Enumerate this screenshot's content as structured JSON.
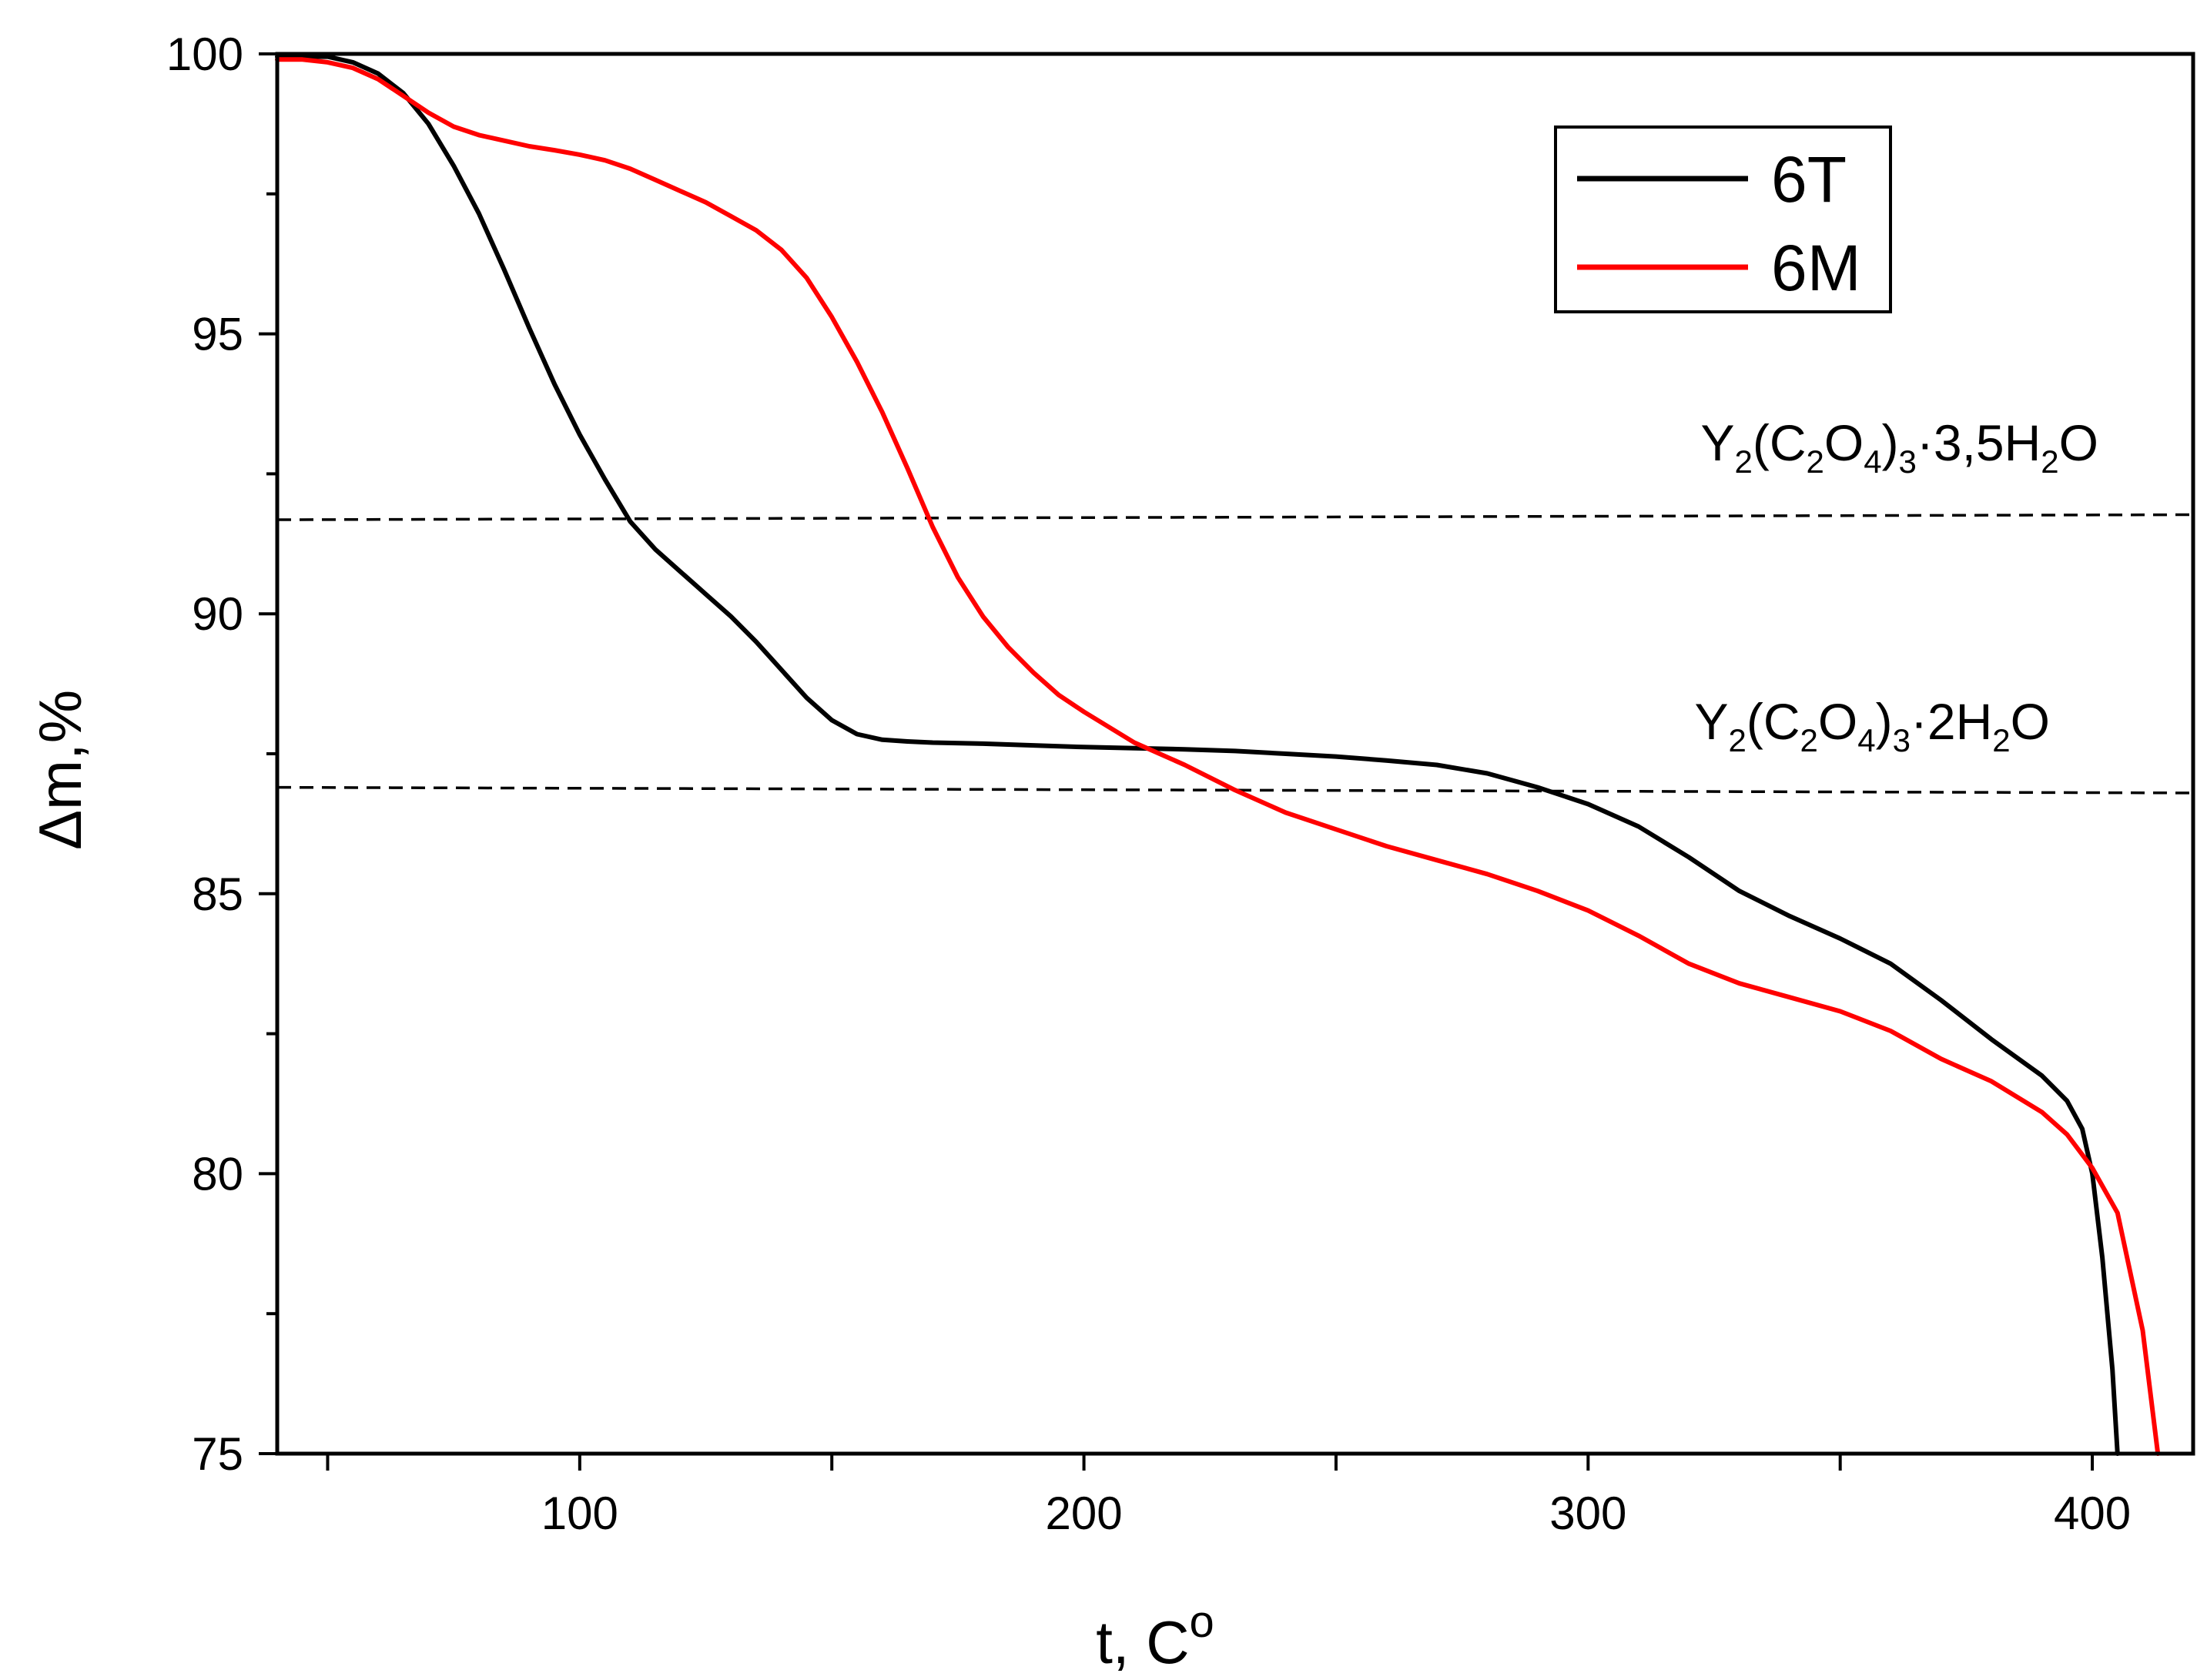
{
  "chart_data": {
    "type": "line",
    "title": "",
    "xlabel": "t, C",
    "xlabel_sup": "o",
    "ylabel": "Δm,%",
    "xlim": [
      40,
      420
    ],
    "ylim": [
      75,
      100
    ],
    "xticks": [
      100,
      200,
      300,
      400
    ],
    "xticks_minor": [
      50,
      100,
      150,
      200,
      250,
      300,
      350,
      400
    ],
    "yticks": [
      75,
      80,
      85,
      90,
      95,
      100
    ],
    "yticks_minor": [
      77.5,
      82.5,
      87.5,
      92.5,
      97.5
    ],
    "colors": {
      "6T": "#000000",
      "6M": "#ff0000",
      "reference": "#000000"
    },
    "series": [
      {
        "name": "6T",
        "color": "#000000",
        "x": [
          40,
          45,
          50,
          55,
          60,
          65,
          70,
          75,
          80,
          85,
          90,
          95,
          100,
          105,
          110,
          115,
          120,
          125,
          130,
          135,
          140,
          145,
          150,
          155,
          160,
          165,
          170,
          180,
          190,
          200,
          210,
          220,
          230,
          240,
          250,
          260,
          270,
          280,
          290,
          300,
          310,
          320,
          330,
          340,
          350,
          360,
          370,
          380,
          390,
          395,
          398,
          400,
          402,
          404,
          405
        ],
        "y": [
          99.95,
          99.95,
          99.95,
          99.85,
          99.65,
          99.3,
          98.75,
          98.0,
          97.15,
          96.15,
          95.1,
          94.1,
          93.2,
          92.4,
          91.65,
          91.15,
          90.75,
          90.35,
          89.95,
          89.5,
          89.0,
          88.5,
          88.1,
          87.85,
          87.75,
          87.72,
          87.7,
          87.68,
          87.65,
          87.62,
          87.6,
          87.58,
          87.55,
          87.5,
          87.45,
          87.38,
          87.3,
          87.15,
          86.9,
          86.6,
          86.2,
          85.65,
          85.05,
          84.6,
          84.2,
          83.75,
          83.1,
          82.4,
          81.75,
          81.3,
          80.8,
          80.0,
          78.5,
          76.5,
          75.0
        ]
      },
      {
        "name": "6M",
        "color": "#ff0000",
        "x": [
          40,
          45,
          50,
          55,
          60,
          65,
          70,
          75,
          80,
          85,
          90,
          95,
          100,
          105,
          110,
          115,
          120,
          125,
          130,
          135,
          140,
          145,
          150,
          155,
          160,
          165,
          170,
          175,
          180,
          185,
          190,
          195,
          200,
          210,
          220,
          230,
          240,
          250,
          260,
          270,
          280,
          290,
          300,
          310,
          320,
          330,
          340,
          350,
          360,
          370,
          380,
          390,
          395,
          400,
          405,
          410,
          413
        ],
        "y": [
          99.9,
          99.9,
          99.85,
          99.75,
          99.55,
          99.25,
          98.95,
          98.7,
          98.55,
          98.45,
          98.35,
          98.28,
          98.2,
          98.1,
          97.95,
          97.75,
          97.55,
          97.35,
          97.1,
          96.85,
          96.5,
          96.0,
          95.3,
          94.5,
          93.6,
          92.6,
          91.55,
          90.65,
          89.95,
          89.4,
          88.95,
          88.55,
          88.25,
          87.7,
          87.3,
          86.85,
          86.45,
          86.15,
          85.85,
          85.6,
          85.35,
          85.05,
          84.7,
          84.25,
          83.75,
          83.4,
          83.15,
          82.9,
          82.55,
          82.05,
          81.65,
          81.1,
          80.7,
          80.1,
          79.3,
          77.2,
          75.0
        ]
      }
    ],
    "reference_lines": [
      {
        "name": "Y2(C2O4)3·3,5H2O",
        "style": "dashed",
        "x": [
          40,
          420
        ],
        "y": [
          91.68,
          91.77
        ],
        "label_parts": [
          {
            "t": "Y",
            "sub": false
          },
          {
            "t": "2",
            "sub": true
          },
          {
            "t": "(C",
            "sub": false
          },
          {
            "t": "2",
            "sub": true
          },
          {
            "t": "O",
            "sub": false
          },
          {
            "t": "4",
            "sub": true
          },
          {
            "t": ")",
            "sub": false
          },
          {
            "t": "3",
            "sub": true
          },
          {
            "t": "·3,5H",
            "sub": false
          },
          {
            "t": "2",
            "sub": true
          },
          {
            "t": "O",
            "sub": false
          }
        ]
      },
      {
        "name": "Y2(C2O4)3·2H2O",
        "style": "dashed",
        "x": [
          40,
          420
        ],
        "y": [
          86.9,
          86.8
        ],
        "label_parts": [
          {
            "t": "Y",
            "sub": false
          },
          {
            "t": "2",
            "sub": true
          },
          {
            "t": "(C",
            "sub": false
          },
          {
            "t": "2",
            "sub": true
          },
          {
            "t": "O",
            "sub": false
          },
          {
            "t": "4",
            "sub": true
          },
          {
            "t": ")",
            "sub": false
          },
          {
            "t": "3",
            "sub": true
          },
          {
            "t": "·2H",
            "sub": false
          },
          {
            "t": "2",
            "sub": true
          },
          {
            "t": "O",
            "sub": false
          }
        ]
      }
    ],
    "legend": {
      "placement": "top-right",
      "entries": [
        {
          "label": "6T",
          "color": "#000000"
        },
        {
          "label": "6M",
          "color": "#ff0000"
        }
      ]
    }
  }
}
